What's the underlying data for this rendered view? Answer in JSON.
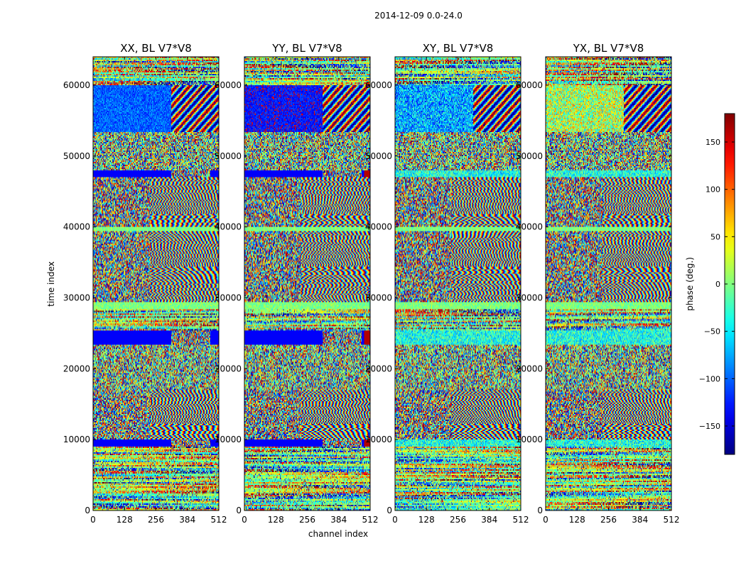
{
  "chart_data": {
    "type": "heatmap",
    "suptitle": "2014-12-09 0.0-24.0",
    "xlabel": "channel index",
    "ylabel": "time index",
    "xlim": [
      0,
      512
    ],
    "ylim": [
      0,
      64000
    ],
    "x_ticks": [
      0,
      128,
      256,
      384,
      512
    ],
    "x_tick_labels": [
      "0",
      "128",
      "256",
      "384",
      "512"
    ],
    "y_ticks": [
      0,
      10000,
      20000,
      30000,
      40000,
      50000,
      60000
    ],
    "y_tick_labels": [
      "0",
      "10000",
      "20000",
      "30000",
      "40000",
      "50000",
      "60000"
    ],
    "panels": [
      {
        "title": "XX, BL V7*V8",
        "pol": "XX"
      },
      {
        "title": "YY, BL V7*V8",
        "pol": "YY"
      },
      {
        "title": "XY, BL V7*V8",
        "pol": "XY"
      },
      {
        "title": "YX, BL V7*V8",
        "pol": "YX"
      }
    ],
    "colorbar": {
      "label": "phase (deg.)",
      "range": [
        -180,
        180
      ],
      "ticks": [
        150,
        100,
        50,
        0,
        -50,
        -100,
        -150
      ],
      "tick_labels": [
        "150",
        "100",
        "50",
        "0",
        "−50",
        "−100",
        "−150"
      ],
      "colormap": "jet"
    },
    "band_segments": [
      {
        "y0": 0,
        "y1": 9000,
        "kind": "striped"
      },
      {
        "y0": 9000,
        "y1": 10000,
        "kind": "flag"
      },
      {
        "y0": 10000,
        "y1": 17000,
        "kind": "fringe"
      },
      {
        "y0": 17000,
        "y1": 23500,
        "kind": "noise"
      },
      {
        "y0": 23500,
        "y1": 25500,
        "kind": "flag"
      },
      {
        "y0": 25500,
        "y1": 28500,
        "kind": "striped"
      },
      {
        "y0": 28500,
        "y1": 29500,
        "kind": "green"
      },
      {
        "y0": 29500,
        "y1": 39500,
        "kind": "fringe"
      },
      {
        "y0": 39500,
        "y1": 40000,
        "kind": "green"
      },
      {
        "y0": 40000,
        "y1": 47000,
        "kind": "fringe"
      },
      {
        "y0": 47000,
        "y1": 48000,
        "kind": "flag"
      },
      {
        "y0": 48000,
        "y1": 53500,
        "kind": "noise"
      },
      {
        "y0": 53500,
        "y1": 60000,
        "kind": "saturated"
      },
      {
        "y0": 60000,
        "y1": 64000,
        "kind": "striped"
      }
    ]
  }
}
